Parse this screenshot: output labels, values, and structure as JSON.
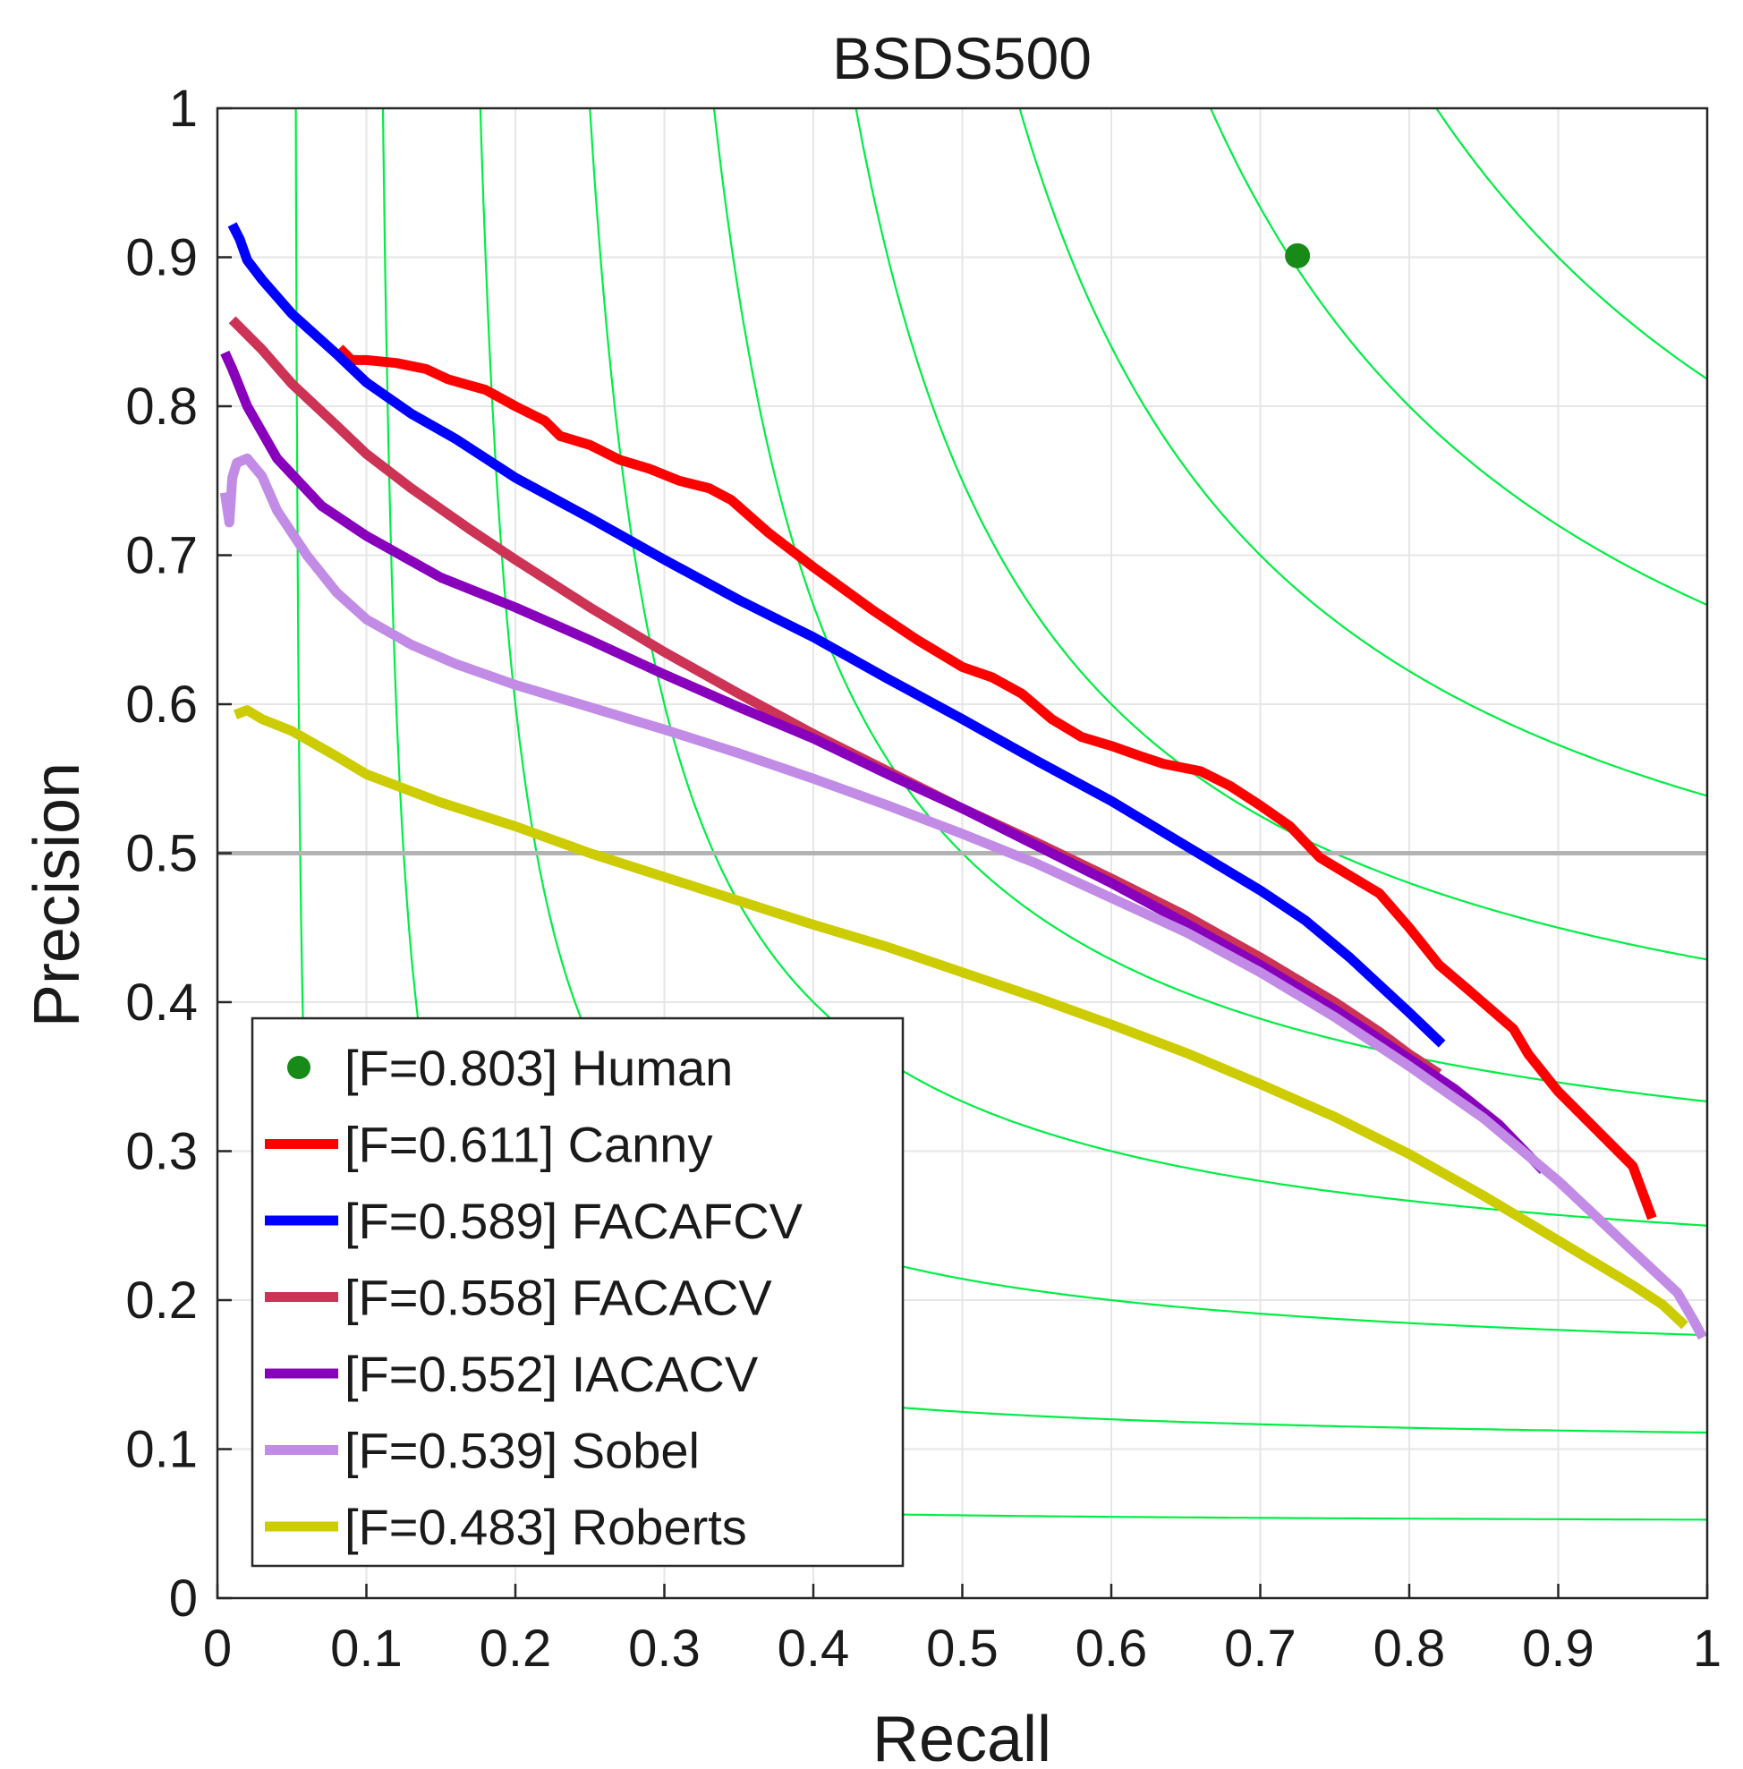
{
  "chart_data": {
    "type": "line",
    "title": "BSDS500",
    "xlabel": "Recall",
    "ylabel": "Precision",
    "xlim": [
      0,
      1
    ],
    "ylim": [
      0,
      1
    ],
    "xticks": [
      0,
      0.1,
      0.2,
      0.3,
      0.4,
      0.5,
      0.6,
      0.7,
      0.8,
      0.9,
      1
    ],
    "yticks": [
      0,
      0.1,
      0.2,
      0.3,
      0.4,
      0.5,
      0.6,
      0.7,
      0.8,
      0.9,
      1
    ],
    "xtick_labels": [
      "0",
      "0.1",
      "0.2",
      "0.3",
      "0.4",
      "0.5",
      "0.6",
      "0.7",
      "0.8",
      "0.9",
      "1"
    ],
    "ytick_labels": [
      "0",
      "0.1",
      "0.2",
      "0.3",
      "0.4",
      "0.5",
      "0.6",
      "0.7",
      "0.8",
      "0.9",
      "1"
    ],
    "grid": true,
    "reference_line": {
      "y": 0.5,
      "color": "#b3b3b3"
    },
    "iso_f_contours": {
      "color": "#00ee44",
      "f_values": [
        0.1,
        0.2,
        0.3,
        0.4,
        0.5,
        0.6,
        0.7,
        0.8,
        0.9
      ]
    },
    "legend": {
      "location": "bottom-left"
    },
    "human": {
      "label": "[F=0.803] Human",
      "recall": 0.725,
      "precision": 0.901,
      "color": "#178a17"
    },
    "series": [
      {
        "name": "Canny",
        "label": "[F=0.611] Canny",
        "color": "#ff0000",
        "points": [
          [
            0.082,
            0.839
          ],
          [
            0.09,
            0.831
          ],
          [
            0.1,
            0.831
          ],
          [
            0.12,
            0.829
          ],
          [
            0.14,
            0.825
          ],
          [
            0.155,
            0.818
          ],
          [
            0.18,
            0.811
          ],
          [
            0.2,
            0.8
          ],
          [
            0.22,
            0.79
          ],
          [
            0.23,
            0.78
          ],
          [
            0.25,
            0.774
          ],
          [
            0.27,
            0.764
          ],
          [
            0.29,
            0.758
          ],
          [
            0.31,
            0.75
          ],
          [
            0.33,
            0.745
          ],
          [
            0.345,
            0.737
          ],
          [
            0.37,
            0.715
          ],
          [
            0.4,
            0.692
          ],
          [
            0.44,
            0.663
          ],
          [
            0.47,
            0.643
          ],
          [
            0.5,
            0.625
          ],
          [
            0.52,
            0.618
          ],
          [
            0.54,
            0.607
          ],
          [
            0.56,
            0.59
          ],
          [
            0.58,
            0.578
          ],
          [
            0.6,
            0.572
          ],
          [
            0.62,
            0.565
          ],
          [
            0.635,
            0.56
          ],
          [
            0.66,
            0.555
          ],
          [
            0.68,
            0.545
          ],
          [
            0.7,
            0.532
          ],
          [
            0.72,
            0.518
          ],
          [
            0.74,
            0.497
          ],
          [
            0.76,
            0.485
          ],
          [
            0.78,
            0.473
          ],
          [
            0.8,
            0.45
          ],
          [
            0.82,
            0.425
          ],
          [
            0.84,
            0.408
          ],
          [
            0.87,
            0.382
          ],
          [
            0.88,
            0.365
          ],
          [
            0.9,
            0.34
          ],
          [
            0.92,
            0.32
          ],
          [
            0.95,
            0.29
          ],
          [
            0.963,
            0.255
          ]
        ]
      },
      {
        "name": "FACAFCV",
        "label": "[F=0.589] FACAFCV",
        "color": "#0000ff",
        "points": [
          [
            0.01,
            0.922
          ],
          [
            0.015,
            0.912
          ],
          [
            0.02,
            0.898
          ],
          [
            0.03,
            0.885
          ],
          [
            0.05,
            0.862
          ],
          [
            0.08,
            0.835
          ],
          [
            0.1,
            0.816
          ],
          [
            0.13,
            0.795
          ],
          [
            0.16,
            0.778
          ],
          [
            0.2,
            0.752
          ],
          [
            0.25,
            0.725
          ],
          [
            0.3,
            0.697
          ],
          [
            0.35,
            0.67
          ],
          [
            0.4,
            0.645
          ],
          [
            0.45,
            0.617
          ],
          [
            0.5,
            0.59
          ],
          [
            0.55,
            0.562
          ],
          [
            0.6,
            0.535
          ],
          [
            0.65,
            0.505
          ],
          [
            0.7,
            0.475
          ],
          [
            0.73,
            0.455
          ],
          [
            0.76,
            0.43
          ],
          [
            0.8,
            0.393
          ],
          [
            0.822,
            0.372
          ]
        ]
      },
      {
        "name": "FACACV",
        "label": "[F=0.558] FACACV",
        "color": "#cc3355",
        "points": [
          [
            0.01,
            0.858
          ],
          [
            0.03,
            0.838
          ],
          [
            0.05,
            0.815
          ],
          [
            0.08,
            0.787
          ],
          [
            0.1,
            0.768
          ],
          [
            0.13,
            0.745
          ],
          [
            0.17,
            0.717
          ],
          [
            0.2,
            0.697
          ],
          [
            0.25,
            0.665
          ],
          [
            0.3,
            0.635
          ],
          [
            0.35,
            0.607
          ],
          [
            0.4,
            0.58
          ],
          [
            0.45,
            0.555
          ],
          [
            0.5,
            0.53
          ],
          [
            0.55,
            0.507
          ],
          [
            0.6,
            0.483
          ],
          [
            0.65,
            0.458
          ],
          [
            0.7,
            0.43
          ],
          [
            0.75,
            0.4
          ],
          [
            0.78,
            0.38
          ],
          [
            0.8,
            0.365
          ],
          [
            0.82,
            0.352
          ]
        ]
      },
      {
        "name": "IACACV",
        "label": "[F=0.552] IACACV",
        "color": "#8800bb",
        "points": [
          [
            0.005,
            0.836
          ],
          [
            0.01,
            0.825
          ],
          [
            0.02,
            0.8
          ],
          [
            0.04,
            0.765
          ],
          [
            0.07,
            0.733
          ],
          [
            0.1,
            0.713
          ],
          [
            0.15,
            0.685
          ],
          [
            0.2,
            0.665
          ],
          [
            0.25,
            0.643
          ],
          [
            0.3,
            0.62
          ],
          [
            0.35,
            0.598
          ],
          [
            0.4,
            0.577
          ],
          [
            0.45,
            0.553
          ],
          [
            0.5,
            0.53
          ],
          [
            0.55,
            0.505
          ],
          [
            0.6,
            0.48
          ],
          [
            0.65,
            0.453
          ],
          [
            0.7,
            0.425
          ],
          [
            0.75,
            0.395
          ],
          [
            0.8,
            0.362
          ],
          [
            0.83,
            0.342
          ],
          [
            0.86,
            0.318
          ],
          [
            0.89,
            0.287
          ]
        ]
      },
      {
        "name": "Sobel",
        "label": "[F=0.539] Sobel",
        "color": "#c28ce6",
        "points": [
          [
            0.005,
            0.742
          ],
          [
            0.008,
            0.722
          ],
          [
            0.01,
            0.752
          ],
          [
            0.013,
            0.762
          ],
          [
            0.02,
            0.765
          ],
          [
            0.03,
            0.753
          ],
          [
            0.04,
            0.73
          ],
          [
            0.06,
            0.7
          ],
          [
            0.08,
            0.675
          ],
          [
            0.1,
            0.657
          ],
          [
            0.13,
            0.64
          ],
          [
            0.16,
            0.627
          ],
          [
            0.2,
            0.613
          ],
          [
            0.25,
            0.598
          ],
          [
            0.3,
            0.583
          ],
          [
            0.35,
            0.567
          ],
          [
            0.4,
            0.55
          ],
          [
            0.45,
            0.532
          ],
          [
            0.5,
            0.513
          ],
          [
            0.55,
            0.493
          ],
          [
            0.6,
            0.47
          ],
          [
            0.65,
            0.447
          ],
          [
            0.7,
            0.42
          ],
          [
            0.75,
            0.39
          ],
          [
            0.8,
            0.357
          ],
          [
            0.85,
            0.322
          ],
          [
            0.9,
            0.28
          ],
          [
            0.95,
            0.233
          ],
          [
            0.98,
            0.205
          ],
          [
            0.99,
            0.188
          ],
          [
            0.997,
            0.175
          ]
        ]
      },
      {
        "name": "Roberts",
        "label": "[F=0.483] Roberts",
        "color": "#cccc00",
        "points": [
          [
            0.012,
            0.593
          ],
          [
            0.02,
            0.596
          ],
          [
            0.03,
            0.59
          ],
          [
            0.05,
            0.582
          ],
          [
            0.08,
            0.565
          ],
          [
            0.1,
            0.553
          ],
          [
            0.15,
            0.534
          ],
          [
            0.2,
            0.518
          ],
          [
            0.25,
            0.5
          ],
          [
            0.3,
            0.484
          ],
          [
            0.35,
            0.468
          ],
          [
            0.4,
            0.452
          ],
          [
            0.45,
            0.437
          ],
          [
            0.5,
            0.42
          ],
          [
            0.55,
            0.403
          ],
          [
            0.6,
            0.385
          ],
          [
            0.65,
            0.366
          ],
          [
            0.7,
            0.345
          ],
          [
            0.75,
            0.323
          ],
          [
            0.8,
            0.298
          ],
          [
            0.85,
            0.27
          ],
          [
            0.9,
            0.24
          ],
          [
            0.95,
            0.21
          ],
          [
            0.97,
            0.197
          ],
          [
            0.985,
            0.183
          ]
        ]
      }
    ]
  }
}
